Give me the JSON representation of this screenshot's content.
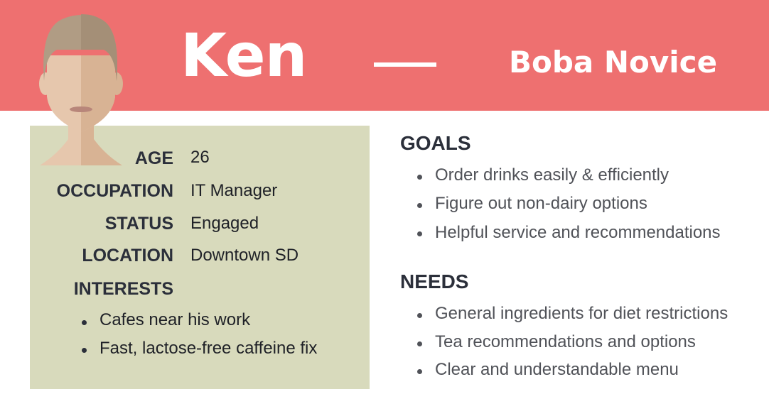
{
  "header": {
    "name": "Ken",
    "role": "Boba Novice",
    "banner_color": "#ee7070"
  },
  "profile": {
    "avatar_icon": "user-avatar-illustration",
    "fields": [
      {
        "label": "AGE",
        "value": "26"
      },
      {
        "label": "OCCUPATION",
        "value": "IT Manager"
      },
      {
        "label": "STATUS",
        "value": "Engaged"
      },
      {
        "label": "LOCATION",
        "value": "Downtown SD"
      }
    ],
    "interests_label": "INTERESTS",
    "interests": [
      "Cafes near his work",
      "Fast, lactose-free caffeine fix"
    ],
    "card_color": "#d8dabc"
  },
  "goals": {
    "title": "GOALS",
    "items": [
      "Order drinks easily & efficiently",
      "Figure out non-dairy options",
      "Helpful service and recommendations"
    ]
  },
  "needs": {
    "title": "NEEDS",
    "items": [
      "General ingredients for diet restrictions",
      "Tea recommendations and options",
      "Clear and understandable menu"
    ]
  }
}
